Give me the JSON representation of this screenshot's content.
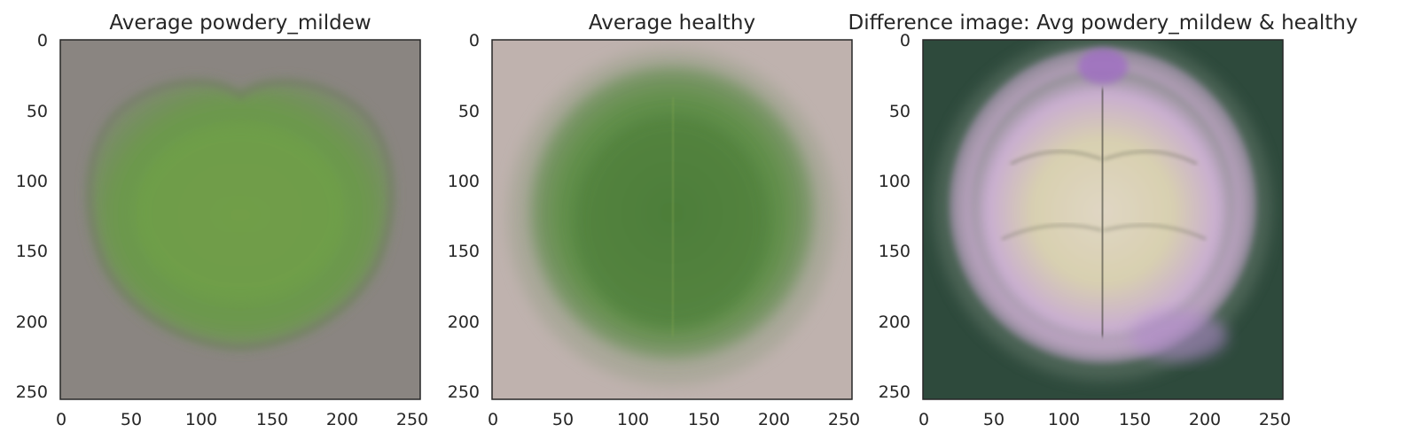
{
  "chart_data": [
    {
      "type": "image",
      "title": "Average powdery_mildew",
      "xlim": [
        0,
        256
      ],
      "ylim": [
        256,
        0
      ],
      "xticks": [
        0,
        50,
        100,
        150,
        200,
        250
      ],
      "yticks": [
        0,
        50,
        100,
        150,
        200,
        250
      ],
      "grid": false,
      "colors": {
        "background": "#8a8581",
        "leaf": "#6a9a48",
        "leaf_dark": "#4f7a36",
        "edge": "#77746c"
      }
    },
    {
      "type": "image",
      "title": "Average healthy",
      "xlim": [
        0,
        256
      ],
      "ylim": [
        256,
        0
      ],
      "xticks": [
        0,
        50,
        100,
        150,
        200,
        250
      ],
      "yticks": [
        0,
        50,
        100,
        150,
        200,
        250
      ],
      "grid": false,
      "colors": {
        "background": "#bfb2ae",
        "leaf": "#5e8e46",
        "leaf_dark": "#4a7a38",
        "edge": "#9aa08a"
      }
    },
    {
      "type": "image",
      "title": "Difference image: Avg powdery_mildew & healthy",
      "xlim": [
        0,
        256
      ],
      "ylim": [
        256,
        0
      ],
      "xticks": [
        0,
        50,
        100,
        150,
        200,
        250
      ],
      "yticks": [
        0,
        50,
        100,
        150,
        200,
        250
      ],
      "grid": false,
      "colors": {
        "background": "#2e4a3c",
        "ring": "#c9a8d2",
        "center": "#d9d2b4",
        "accent": "#a06ec4",
        "vein": "#3e3e36"
      }
    }
  ]
}
